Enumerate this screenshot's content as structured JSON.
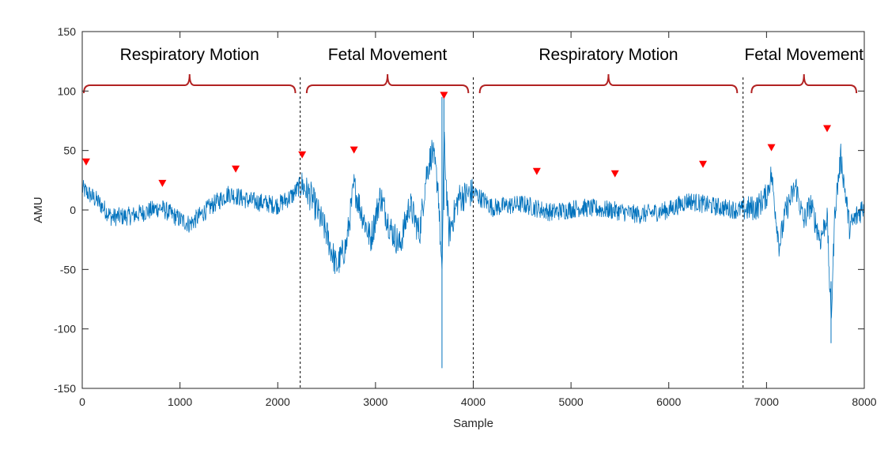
{
  "chart_data": {
    "type": "line",
    "xlabel": "Sample",
    "ylabel": "AMU",
    "xlim": [
      0,
      8000
    ],
    "ylim": [
      -150,
      150
    ],
    "xticks": [
      0,
      1000,
      2000,
      3000,
      4000,
      5000,
      6000,
      7000,
      8000
    ],
    "yticks": [
      -150,
      -100,
      -50,
      0,
      50,
      100,
      150
    ],
    "xtick_labels": [
      "0",
      "1000",
      "2000",
      "3000",
      "4000",
      "5000",
      "6000",
      "7000",
      "8000"
    ],
    "ytick_labels": [
      "-150",
      "-100",
      "-50",
      "0",
      "50",
      "100",
      "150"
    ],
    "colors": {
      "signal": "#0072BD",
      "marker": "#FF0000",
      "brace": "#B22222",
      "axis": "#262626"
    },
    "signal_envelope": [
      {
        "x": 0,
        "y": 18
      },
      {
        "x": 150,
        "y": 8
      },
      {
        "x": 300,
        "y": -6
      },
      {
        "x": 500,
        "y": -5
      },
      {
        "x": 800,
        "y": 2
      },
      {
        "x": 1000,
        "y": -8
      },
      {
        "x": 1100,
        "y": -12
      },
      {
        "x": 1300,
        "y": 2
      },
      {
        "x": 1500,
        "y": 14
      },
      {
        "x": 1700,
        "y": 8
      },
      {
        "x": 2000,
        "y": 4
      },
      {
        "x": 2150,
        "y": 12
      },
      {
        "x": 2240,
        "y": 22
      },
      {
        "x": 2350,
        "y": 10
      },
      {
        "x": 2500,
        "y": -20
      },
      {
        "x": 2600,
        "y": -48
      },
      {
        "x": 2700,
        "y": -30
      },
      {
        "x": 2780,
        "y": 20
      },
      {
        "x": 2850,
        "y": 0
      },
      {
        "x": 2950,
        "y": -25
      },
      {
        "x": 3050,
        "y": 12
      },
      {
        "x": 3150,
        "y": -15
      },
      {
        "x": 3250,
        "y": -30
      },
      {
        "x": 3350,
        "y": 5
      },
      {
        "x": 3450,
        "y": -20
      },
      {
        "x": 3520,
        "y": 30
      },
      {
        "x": 3580,
        "y": 50
      },
      {
        "x": 3640,
        "y": 20
      },
      {
        "x": 3680,
        "y": -60
      },
      {
        "x": 3700,
        "y": 60
      },
      {
        "x": 3750,
        "y": -20
      },
      {
        "x": 3850,
        "y": 10
      },
      {
        "x": 4000,
        "y": 15
      },
      {
        "x": 4200,
        "y": 2
      },
      {
        "x": 4500,
        "y": 5
      },
      {
        "x": 4800,
        "y": -2
      },
      {
        "x": 5100,
        "y": 2
      },
      {
        "x": 5400,
        "y": 0
      },
      {
        "x": 5700,
        "y": -4
      },
      {
        "x": 6000,
        "y": 0
      },
      {
        "x": 6200,
        "y": 8
      },
      {
        "x": 6400,
        "y": 4
      },
      {
        "x": 6700,
        "y": 0
      },
      {
        "x": 6900,
        "y": 2
      },
      {
        "x": 7000,
        "y": 12
      },
      {
        "x": 7050,
        "y": 30
      },
      {
        "x": 7130,
        "y": -30
      },
      {
        "x": 7200,
        "y": 0
      },
      {
        "x": 7300,
        "y": 20
      },
      {
        "x": 7380,
        "y": -10
      },
      {
        "x": 7450,
        "y": 5
      },
      {
        "x": 7550,
        "y": -25
      },
      {
        "x": 7620,
        "y": -5
      },
      {
        "x": 7660,
        "y": -95
      },
      {
        "x": 7700,
        "y": 0
      },
      {
        "x": 7760,
        "y": 45
      },
      {
        "x": 7850,
        "y": -15
      },
      {
        "x": 8000,
        "y": 5
      }
    ],
    "peak_markers": [
      {
        "x": 40,
        "y": 40
      },
      {
        "x": 820,
        "y": 22
      },
      {
        "x": 1570,
        "y": 34
      },
      {
        "x": 2250,
        "y": 46
      },
      {
        "x": 2780,
        "y": 50
      },
      {
        "x": 3700,
        "y": 96
      },
      {
        "x": 4650,
        "y": 32
      },
      {
        "x": 5450,
        "y": 30
      },
      {
        "x": 6350,
        "y": 38
      },
      {
        "x": 7050,
        "y": 52
      },
      {
        "x": 7620,
        "y": 68
      }
    ],
    "boundaries": [
      2230,
      4000,
      6760
    ],
    "segments": [
      {
        "label": "Respiratory Motion",
        "x_start": 0,
        "x_end": 2180
      },
      {
        "label": "Fetal Movement",
        "x_start": 2280,
        "x_end": 3950
      },
      {
        "label": "Respiratory Motion",
        "x_start": 4050,
        "x_end": 6700
      },
      {
        "label": "Fetal Movement",
        "x_start": 6830,
        "x_end": 7920
      }
    ]
  }
}
